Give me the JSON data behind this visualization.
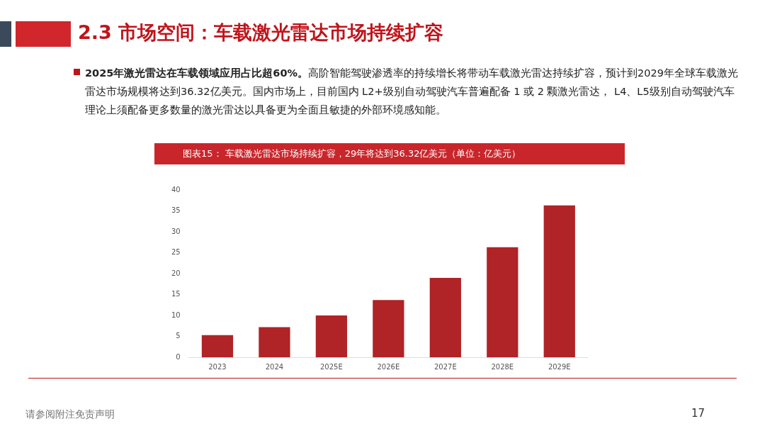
{
  "chart_data": {
    "type": "bar",
    "title": "2.3 市场空间：车载激光雷达市场持续扩容",
    "subtitle": "2025年激光雷达在车载领域应用占比超60%。",
    "annotations": [
      "高阶智能驾驶渗透率的持续增长将带动车载激光雷达持续扩容，预计到2029年全球车载激光雷达市场规模将达到36.32亿美元。国内市场上，目前国内 L2+级别自动驾驶汽车普遍配备 1 或 2 颗激光雷达， L4、L5级别自动驾驶汽车理论上须配备更多数量的激光雷达以具备更为全面且敏捷的外部环境感知能。",
      "图表15：  车载激光雷达市场持续扩容，29年将达到36.32亿美元（单位：亿美元）",
      "请参阅附注免责声明",
      "17"
    ],
    "categories": [
      "2023",
      "2024",
      "2025E",
      "2026E",
      "2027E",
      "2028E",
      "2029E"
    ],
    "values": [
      5.3,
      7.2,
      10.0,
      13.7,
      19.0,
      26.3,
      36.3
    ],
    "color": "#b02326",
    "ylim": [
      0,
      40
    ],
    "yticks": [
      0,
      5,
      10,
      15,
      20,
      25,
      30,
      35,
      40
    ],
    "grid": false,
    "legend": false
  }
}
